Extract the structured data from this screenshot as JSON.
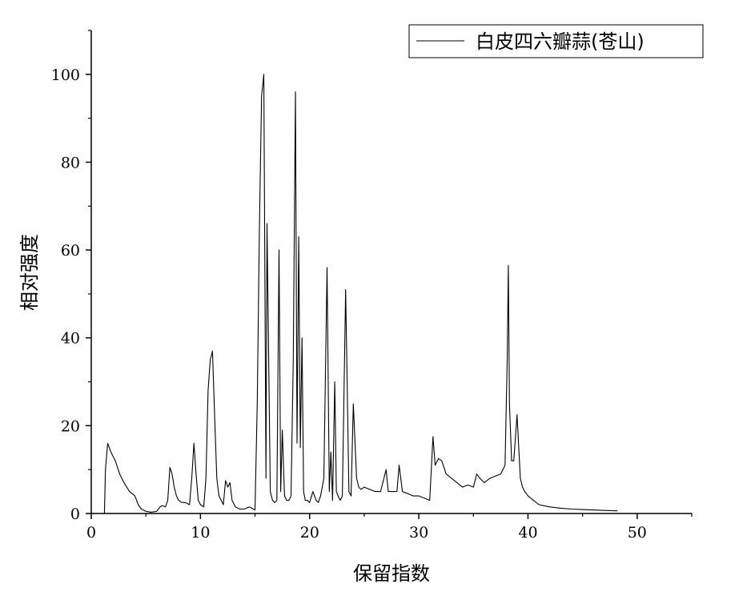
{
  "chart_data": {
    "type": "line",
    "title": "",
    "xlabel": "保留指数",
    "ylabel": "相对强度",
    "xlim": [
      0,
      55
    ],
    "ylim": [
      0,
      110
    ],
    "xticks": [
      0,
      10,
      20,
      30,
      40,
      50
    ],
    "yticks": [
      0,
      20,
      40,
      60,
      80,
      100
    ],
    "xtick_labels": [
      "0",
      "10",
      "20",
      "30",
      "40",
      "50"
    ],
    "ytick_labels": [
      "0",
      "20",
      "40",
      "60",
      "80",
      "100"
    ],
    "grid": false,
    "legend_position": "top-right",
    "series": [
      {
        "name": "白皮四六瓣蒜(苍山)",
        "color": "#000000",
        "x": [
          1.2,
          1.3,
          1.5,
          1.8,
          2.2,
          2.6,
          3.0,
          3.5,
          4.0,
          4.3,
          4.6,
          5.0,
          5.5,
          6.0,
          6.3,
          6.5,
          6.8,
          7.0,
          7.2,
          7.4,
          7.6,
          7.8,
          8.0,
          8.3,
          8.6,
          9.0,
          9.2,
          9.4,
          9.6,
          9.8,
          10.0,
          10.3,
          10.5,
          10.7,
          10.9,
          11.1,
          11.3,
          11.5,
          11.7,
          11.9,
          12.1,
          12.3,
          12.5,
          12.7,
          12.9,
          13.2,
          13.6,
          14.0,
          14.5,
          15.0,
          15.2,
          15.4,
          15.6,
          15.8,
          16.0,
          16.1,
          16.25,
          16.4,
          16.6,
          16.8,
          17.0,
          17.2,
          17.35,
          17.5,
          17.7,
          17.9,
          18.1,
          18.3,
          18.5,
          18.7,
          18.85,
          19.0,
          19.15,
          19.3,
          19.45,
          19.6,
          19.8,
          20.0,
          20.3,
          20.6,
          20.8,
          21.0,
          21.3,
          21.6,
          21.8,
          21.95,
          22.1,
          22.3,
          22.45,
          22.6,
          22.8,
          23.0,
          23.3,
          23.6,
          23.8,
          24.0,
          24.3,
          24.5,
          24.7,
          25.0,
          25.5,
          26.0,
          26.5,
          27.0,
          27.2,
          27.5,
          28.0,
          28.2,
          28.5,
          29.0,
          29.5,
          30.0,
          30.5,
          31.0,
          31.3,
          31.5,
          31.8,
          32.1,
          32.5,
          33.0,
          33.5,
          34.0,
          34.5,
          35.0,
          35.3,
          35.6,
          36.0,
          36.5,
          37.0,
          37.5,
          37.9,
          38.1,
          38.2,
          38.3,
          38.5,
          38.7,
          39.0,
          39.3,
          39.5,
          39.7,
          40.0,
          40.5,
          41.0,
          42.0,
          43.0,
          44.0,
          45.0,
          46.0,
          47.0,
          48.2
        ],
        "y": [
          0,
          10,
          16,
          14,
          12,
          9,
          7,
          5,
          4,
          2,
          1,
          0.5,
          0.3,
          0.5,
          1.5,
          1.8,
          1.5,
          3,
          10.5,
          9,
          6,
          4,
          3,
          2.5,
          2.5,
          2,
          8,
          16,
          9,
          3,
          2,
          1.5,
          8,
          28,
          35,
          37,
          22,
          8,
          4,
          3,
          2,
          7.5,
          6,
          7,
          3,
          1.5,
          1,
          1,
          1.5,
          0.8,
          25,
          65,
          95,
          100,
          8,
          66,
          35,
          5,
          3,
          2.5,
          3,
          60,
          5,
          19,
          4,
          3,
          3,
          4,
          35,
          96,
          16,
          63,
          15,
          40,
          5,
          3,
          3,
          2.5,
          5,
          3,
          2.5,
          4,
          8,
          56,
          5,
          14,
          3,
          30,
          5,
          4,
          3,
          4,
          51,
          5,
          4,
          25,
          8,
          6,
          5.5,
          6,
          5.5,
          5,
          5,
          10,
          5,
          5,
          5,
          11,
          5,
          4.5,
          4,
          4,
          3.5,
          3,
          17.5,
          11,
          12.5,
          12,
          9,
          8,
          7,
          6,
          6.5,
          6,
          9,
          8,
          7,
          8,
          8.5,
          9,
          11,
          35,
          56.5,
          25,
          12,
          12,
          22.5,
          8,
          6,
          5,
          4,
          3,
          2,
          1.5,
          1.2,
          1,
          0.9,
          0.8,
          0.7,
          0.6
        ]
      }
    ]
  }
}
